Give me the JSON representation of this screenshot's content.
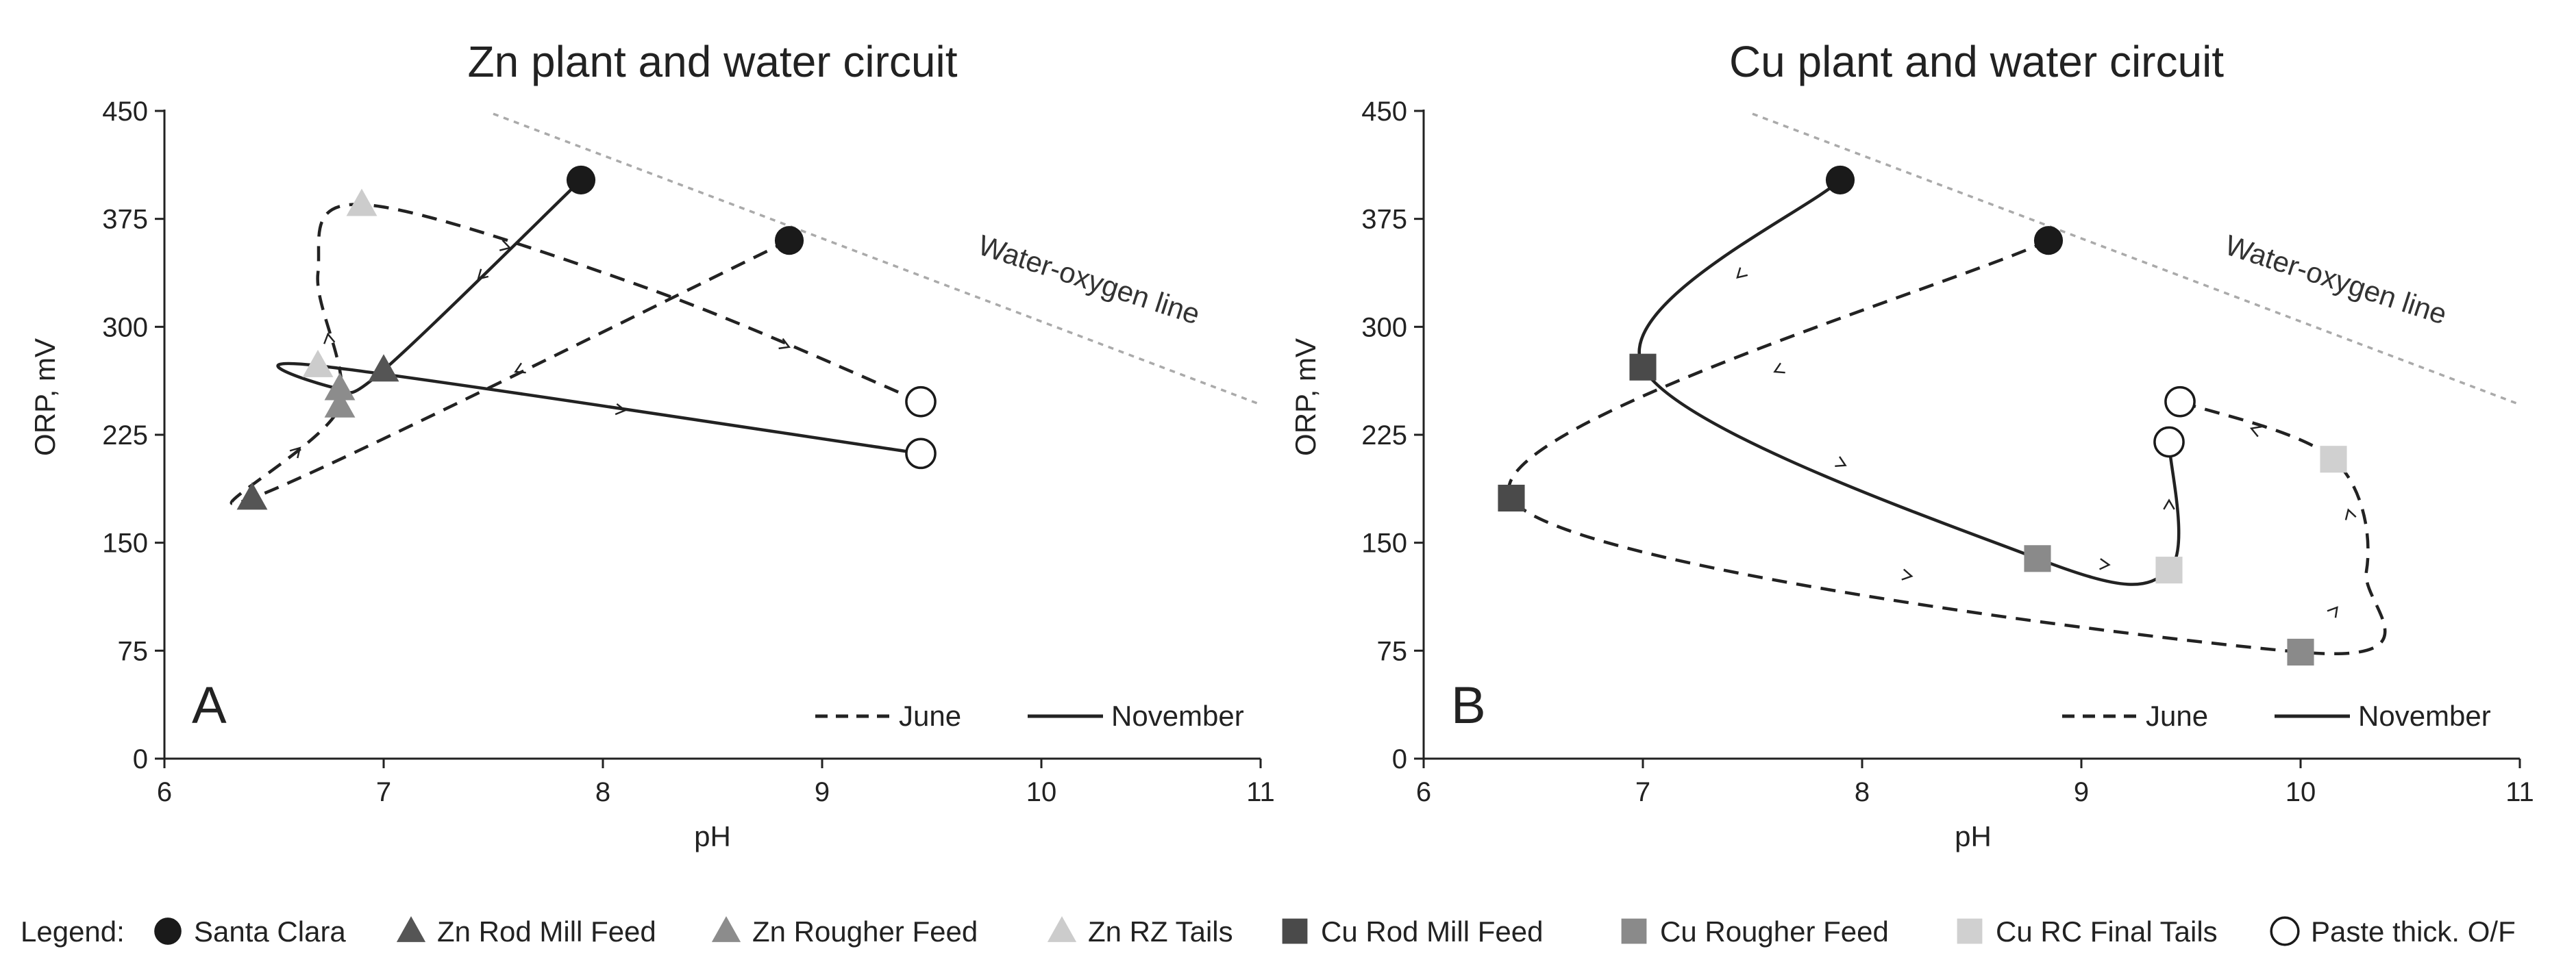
{
  "colors": {
    "santa_clara": "#1a1a1a",
    "zn_rod_mill_feed": "#555555",
    "zn_rougher_feed": "#8c8c8c",
    "zn_rz_tails": "#cccccc",
    "cu_rod_mill_feed": "#4a4a4a",
    "cu_rougher_feed": "#8a8a8a",
    "cu_rc_final_tails": "#d0d0d0",
    "water_oxygen_line": "#aaaaaa"
  },
  "chart_data": [
    {
      "type": "scatter",
      "panel_label": "A",
      "title": "Zn plant and water circuit",
      "xlabel": "pH",
      "ylabel": "ORP, mV",
      "xlim": [
        6,
        11
      ],
      "ylim": [
        0,
        450
      ],
      "x_ticks": [
        "6",
        "7",
        "8",
        "9",
        "10",
        "11"
      ],
      "y_ticks": [
        "0",
        "75",
        "150",
        "225",
        "300",
        "375",
        "450"
      ],
      "grid": false,
      "water_oxygen_line": {
        "label": "Water-oxygen line",
        "points": [
          [
            7.5,
            448
          ],
          [
            11,
            246
          ]
        ]
      },
      "line_legend": {
        "june": "June",
        "november": "November"
      },
      "points": {
        "june": [
          {
            "series": "Santa Clara",
            "x": 8.85,
            "y": 360
          },
          {
            "series": "Zn Rod Mill Feed",
            "x": 6.4,
            "y": 181
          },
          {
            "series": "Zn Rougher Feed",
            "x": 6.8,
            "y": 245
          },
          {
            "series": "Zn RZ Tails",
            "x": 6.9,
            "y": 385
          },
          {
            "series": "Paste thick. O/F",
            "x": 9.45,
            "y": 248
          }
        ],
        "november": [
          {
            "series": "Santa Clara",
            "x": 7.9,
            "y": 402
          },
          {
            "series": "Zn Rod Mill Feed",
            "x": 7.0,
            "y": 270
          },
          {
            "series": "Zn Rougher Feed",
            "x": 6.8,
            "y": 257
          },
          {
            "series": "Zn RZ Tails",
            "x": 6.7,
            "y": 273
          },
          {
            "series": "Paste thick. O/F",
            "x": 9.45,
            "y": 212
          }
        ]
      },
      "paths": {
        "june": [
          [
            8.85,
            360
          ],
          [
            6.4,
            181
          ],
          [
            6.8,
            245
          ],
          [
            6.7,
            337
          ],
          [
            6.9,
            385
          ],
          [
            8.2,
            327
          ],
          [
            9.45,
            248
          ]
        ],
        "november": [
          [
            7.9,
            402
          ],
          [
            7.0,
            270
          ],
          [
            6.8,
            257
          ],
          [
            6.7,
            273
          ],
          [
            9.45,
            212
          ]
        ]
      }
    },
    {
      "type": "scatter",
      "panel_label": "B",
      "title": "Cu plant and water circuit",
      "xlabel": "pH",
      "ylabel": "ORP, mV",
      "xlim": [
        6,
        11
      ],
      "ylim": [
        0,
        450
      ],
      "x_ticks": [
        "6",
        "7",
        "8",
        "9",
        "10",
        "11"
      ],
      "y_ticks": [
        "0",
        "75",
        "150",
        "225",
        "300",
        "375",
        "450"
      ],
      "grid": false,
      "water_oxygen_line": {
        "label": "Water-oxygen line",
        "points": [
          [
            7.5,
            448
          ],
          [
            11,
            246
          ]
        ]
      },
      "line_legend": {
        "june": "June",
        "november": "November"
      },
      "points": {
        "june": [
          {
            "series": "Santa Clara",
            "x": 8.85,
            "y": 360
          },
          {
            "series": "Cu Rod Mill Feed",
            "x": 6.4,
            "y": 181
          },
          {
            "series": "Cu Rougher Feed",
            "x": 10.0,
            "y": 74
          },
          {
            "series": "Cu RC Final Tails",
            "x": 10.15,
            "y": 208
          },
          {
            "series": "Paste thick. O/F",
            "x": 9.45,
            "y": 248
          }
        ],
        "november": [
          {
            "series": "Santa Clara",
            "x": 7.9,
            "y": 402
          },
          {
            "series": "Cu Rod Mill Feed",
            "x": 7.0,
            "y": 272
          },
          {
            "series": "Cu Rougher Feed",
            "x": 8.8,
            "y": 139
          },
          {
            "series": "Cu RC Final Tails",
            "x": 9.4,
            "y": 131
          },
          {
            "series": "Paste thick. O/F",
            "x": 9.4,
            "y": 220
          }
        ]
      },
      "paths": {
        "june": [
          [
            8.85,
            360
          ],
          [
            6.4,
            181
          ],
          [
            10.0,
            74
          ],
          [
            10.3,
            130
          ],
          [
            10.15,
            208
          ],
          [
            9.45,
            248
          ]
        ],
        "november": [
          [
            7.9,
            402
          ],
          [
            7.0,
            272
          ],
          [
            8.8,
            139
          ],
          [
            9.4,
            131
          ],
          [
            9.4,
            220
          ]
        ]
      }
    }
  ],
  "legend": {
    "prefix": "Legend:",
    "items": [
      {
        "label": "Santa Clara",
        "marker": "circle-filled",
        "color": "#1a1a1a"
      },
      {
        "label": "Zn Rod Mill Feed",
        "marker": "triangle",
        "color": "#555555"
      },
      {
        "label": "Zn Rougher Feed",
        "marker": "triangle",
        "color": "#8c8c8c"
      },
      {
        "label": "Zn RZ Tails",
        "marker": "triangle",
        "color": "#cccccc"
      },
      {
        "label": "Cu Rod Mill Feed",
        "marker": "square",
        "color": "#4a4a4a"
      },
      {
        "label": "Cu Rougher Feed",
        "marker": "square",
        "color": "#8a8a8a"
      },
      {
        "label": "Cu RC Final Tails",
        "marker": "square",
        "color": "#d0d0d0"
      },
      {
        "label": "Paste thick. O/F",
        "marker": "circle-open",
        "color": "#1a1a1a"
      }
    ]
  }
}
